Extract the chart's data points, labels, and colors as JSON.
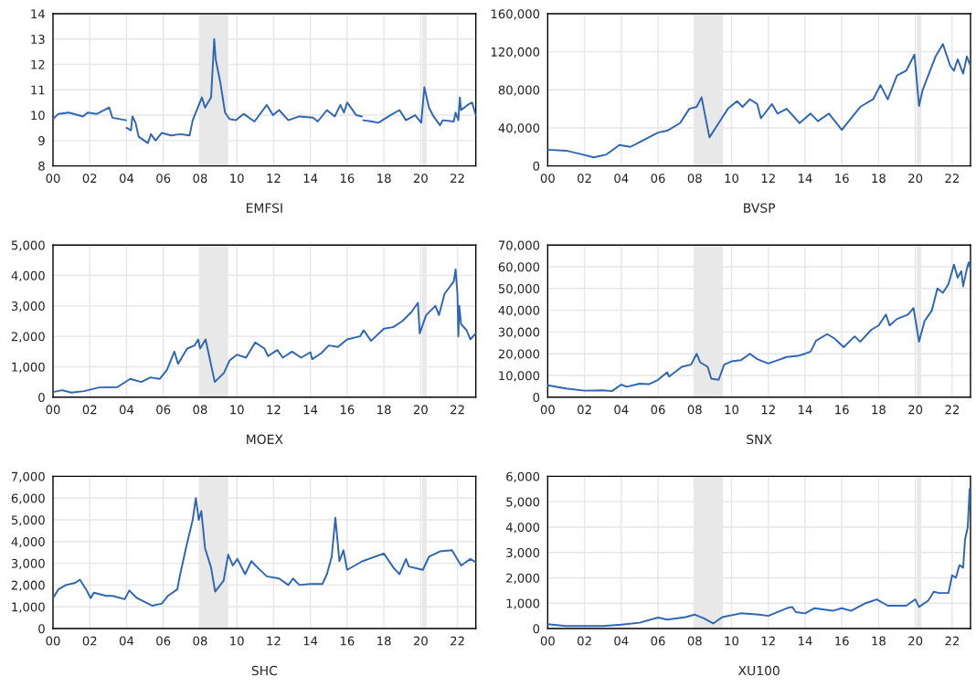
{
  "chart_data": [
    {
      "type": "line",
      "xlabel": "EMFSI",
      "xlim": [
        2000,
        2023
      ],
      "ylim": [
        8,
        14
      ],
      "yticks": [
        8,
        9,
        10,
        11,
        12,
        13,
        14
      ],
      "grid": true,
      "xticks": [
        {
          "value": 2000,
          "label": "00"
        },
        {
          "value": 2002,
          "label": "02"
        },
        {
          "value": 2004,
          "label": "04"
        },
        {
          "value": 2006,
          "label": "06"
        },
        {
          "value": 2008,
          "label": "08"
        },
        {
          "value": 2010,
          "label": "10"
        },
        {
          "value": 2012,
          "label": "12"
        },
        {
          "value": 2014,
          "label": "14"
        },
        {
          "value": 2016,
          "label": "16"
        },
        {
          "value": 2018,
          "label": "18"
        },
        {
          "value": 2020,
          "label": "20"
        },
        {
          "value": 2022,
          "label": "22"
        }
      ],
      "bands": [
        {
          "axis": "x",
          "from": 2007.93,
          "to": 2009.53,
          "color": "#e8e8e8"
        },
        {
          "axis": "x",
          "from": 2020.08,
          "to": 2020.32,
          "color": "#e8e8e8"
        }
      ],
      "x": [
        2000,
        2000.29,
        2000.87,
        2001.63,
        2001.88,
        2002.39,
        2003.06,
        2003.23,
        2003.98,
        2003.99,
        2004.0,
        2004.24,
        2004.32,
        2004.49,
        2004.66,
        2005.16,
        2005.33,
        2005.58,
        2005.92,
        2006.42,
        2006.92,
        2007.43,
        2007.6,
        2008.1,
        2008.27,
        2008.6,
        2008.77,
        2008.85,
        2009.1,
        2009.36,
        2009.6,
        2009.95,
        2010.37,
        2010.96,
        2011.63,
        2011.97,
        2012.3,
        2012.8,
        2013.4,
        2014.15,
        2014.4,
        2014.9,
        2015.33,
        2015.63,
        2015.83,
        2016.0,
        2016.5,
        2016.8,
        2016.84,
        2016.88,
        2017.35,
        2017.7,
        2018.35,
        2018.85,
        2019.2,
        2019.7,
        2020.03,
        2020.2,
        2020.45,
        2020.7,
        2021.05,
        2021.2,
        2021.8,
        2021.9,
        2022.05,
        2022.13,
        2022.2,
        2022.55,
        2022.8,
        2023.0
      ],
      "series": [
        {
          "color": "#2e66b4",
          "values": [
            9.85,
            10.05,
            10.1,
            9.95,
            10.1,
            10.05,
            10.3,
            9.9,
            9.8,
            null,
            9.5,
            9.4,
            9.95,
            9.7,
            9.15,
            8.9,
            9.25,
            9.0,
            9.3,
            9.2,
            9.25,
            9.2,
            9.8,
            10.7,
            10.3,
            10.7,
            13.0,
            12.2,
            11.3,
            10.1,
            9.85,
            9.8,
            10.05,
            9.75,
            10.4,
            10.0,
            10.2,
            9.8,
            9.95,
            9.9,
            9.75,
            10.2,
            9.95,
            10.4,
            10.1,
            10.5,
            10.0,
            9.95,
            null,
            9.8,
            9.75,
            9.7,
            10.0,
            10.2,
            9.8,
            10.0,
            9.7,
            11.1,
            10.3,
            9.95,
            9.6,
            9.8,
            9.75,
            10.1,
            9.8,
            10.7,
            10.2,
            10.4,
            10.5,
            10.0
          ]
        }
      ]
    },
    {
      "type": "line",
      "xlabel": "BVSP",
      "xlim": [
        2000,
        2023
      ],
      "ylim": [
        0,
        160000
      ],
      "yticks": [
        {
          "value": 0,
          "label": "0"
        },
        {
          "value": 40000,
          "label": "40,000"
        },
        {
          "value": 80000,
          "label": "80,000"
        },
        {
          "value": 120000,
          "label": "120,000"
        },
        {
          "value": 160000,
          "label": "160,000"
        }
      ],
      "grid": true,
      "xticks": [
        {
          "value": 2000,
          "label": "00"
        },
        {
          "value": 2002,
          "label": "02"
        },
        {
          "value": 2004,
          "label": "04"
        },
        {
          "value": 2006,
          "label": "06"
        },
        {
          "value": 2008,
          "label": "08"
        },
        {
          "value": 2010,
          "label": "10"
        },
        {
          "value": 2012,
          "label": "12"
        },
        {
          "value": 2014,
          "label": "14"
        },
        {
          "value": 2016,
          "label": "16"
        },
        {
          "value": 2018,
          "label": "18"
        },
        {
          "value": 2020,
          "label": "20"
        },
        {
          "value": 2022,
          "label": "22"
        }
      ],
      "bands": [
        {
          "axis": "x",
          "from": 2007.93,
          "to": 2009.53,
          "color": "#e8e8e8"
        },
        {
          "axis": "x",
          "from": 2020.08,
          "to": 2020.32,
          "color": "#e8e8e8"
        }
      ],
      "x": [
        2000,
        2001,
        2001.9,
        2002.5,
        2003.2,
        2003.9,
        2004.5,
        2005,
        2006,
        2006.5,
        2007.2,
        2007.7,
        2008.1,
        2008.37,
        2008.8,
        2009.3,
        2009.8,
        2010.3,
        2010.6,
        2011,
        2011.4,
        2011.6,
        2012.2,
        2012.5,
        2013,
        2013.7,
        2014.3,
        2014.7,
        2015.3,
        2016.0,
        2016.5,
        2017,
        2017.7,
        2018.1,
        2018.5,
        2019,
        2019.5,
        2019.95,
        2020.2,
        2020.4,
        2020.8,
        2021.1,
        2021.5,
        2021.9,
        2022.1,
        2022.3,
        2022.6,
        2022.8,
        2023.0
      ],
      "series": [
        {
          "color": "#2e66b4",
          "values": [
            17000,
            16000,
            12000,
            9000,
            12000,
            22000,
            20000,
            25000,
            35000,
            37000,
            45000,
            60000,
            62000,
            72000,
            30000,
            45000,
            60000,
            68000,
            62000,
            70000,
            65000,
            50000,
            65000,
            55000,
            60000,
            45000,
            55000,
            47000,
            55000,
            38000,
            50000,
            62000,
            70000,
            85000,
            70000,
            95000,
            100000,
            117000,
            63000,
            80000,
            100000,
            115000,
            128000,
            105000,
            100000,
            112000,
            97000,
            115000,
            105000
          ]
        }
      ]
    },
    {
      "type": "line",
      "xlabel": "MOEX",
      "xlim": [
        2000,
        2023
      ],
      "ylim": [
        0,
        5000
      ],
      "yticks": [
        {
          "value": 0,
          "label": "0"
        },
        {
          "value": 1000,
          "label": "1,000"
        },
        {
          "value": 2000,
          "label": "2,000"
        },
        {
          "value": 3000,
          "label": "3,000"
        },
        {
          "value": 4000,
          "label": "4,000"
        },
        {
          "value": 5000,
          "label": "5,000"
        }
      ],
      "grid": true,
      "xticks": [
        {
          "value": 2000,
          "label": "00"
        },
        {
          "value": 2002,
          "label": "02"
        },
        {
          "value": 2004,
          "label": "04"
        },
        {
          "value": 2006,
          "label": "06"
        },
        {
          "value": 2008,
          "label": "08"
        },
        {
          "value": 2010,
          "label": "10"
        },
        {
          "value": 2012,
          "label": "12"
        },
        {
          "value": 2014,
          "label": "14"
        },
        {
          "value": 2016,
          "label": "16"
        },
        {
          "value": 2018,
          "label": "18"
        },
        {
          "value": 2020,
          "label": "20"
        },
        {
          "value": 2022,
          "label": "22"
        }
      ],
      "bands": [
        {
          "axis": "x",
          "from": 2007.93,
          "to": 2009.53,
          "color": "#e8e8e8"
        },
        {
          "axis": "x",
          "from": 2020.08,
          "to": 2020.32,
          "color": "#e8e8e8"
        }
      ],
      "x": [
        2000,
        2000.5,
        2001,
        2001.7,
        2002.5,
        2003.5,
        2004.2,
        2004.8,
        2005.3,
        2005.8,
        2006.2,
        2006.6,
        2006.8,
        2007.3,
        2007.7,
        2007.9,
        2008.0,
        2008.3,
        2008.8,
        2009.3,
        2009.6,
        2010.0,
        2010.5,
        2011.0,
        2011.5,
        2011.7,
        2012.2,
        2012.5,
        2013,
        2013.5,
        2014,
        2014.1,
        2014.6,
        2015,
        2015.5,
        2016,
        2016.7,
        2016.9,
        2017.3,
        2018,
        2018.5,
        2019,
        2019.5,
        2019.85,
        2019.95,
        2020.3,
        2020.8,
        2021.0,
        2021.3,
        2021.8,
        2021.9,
        2022.0,
        2022.05,
        2022.1,
        2022.2,
        2022.5,
        2022.7,
        2023.0
      ],
      "series": [
        {
          "color": "#2e66b4",
          "values": [
            170,
            230,
            150,
            200,
            320,
            330,
            600,
            500,
            650,
            600,
            900,
            1500,
            1100,
            1600,
            1700,
            1900,
            1600,
            1900,
            500,
            800,
            1200,
            1400,
            1300,
            1800,
            1600,
            1350,
            1550,
            1300,
            1500,
            1300,
            1480,
            1250,
            1450,
            1700,
            1650,
            1900,
            2000,
            2200,
            1850,
            2250,
            2300,
            2500,
            2800,
            3100,
            2100,
            2700,
            3000,
            2700,
            3400,
            3800,
            4200,
            3400,
            2000,
            3000,
            2400,
            2200,
            1900,
            2100
          ]
        }
      ]
    },
    {
      "type": "line",
      "xlabel": "SNX",
      "xlim": [
        2000,
        2023
      ],
      "ylim": [
        0,
        70000
      ],
      "yticks": [
        {
          "value": 0,
          "label": "0"
        },
        {
          "value": 10000,
          "label": "10,000"
        },
        {
          "value": 20000,
          "label": "20,000"
        },
        {
          "value": 30000,
          "label": "30,000"
        },
        {
          "value": 40000,
          "label": "40,000"
        },
        {
          "value": 50000,
          "label": "50,000"
        },
        {
          "value": 60000,
          "label": "60,000"
        },
        {
          "value": 70000,
          "label": "70,000"
        }
      ],
      "grid": true,
      "xticks": [
        {
          "value": 2000,
          "label": "00"
        },
        {
          "value": 2002,
          "label": "02"
        },
        {
          "value": 2004,
          "label": "04"
        },
        {
          "value": 2006,
          "label": "06"
        },
        {
          "value": 2008,
          "label": "08"
        },
        {
          "value": 2010,
          "label": "10"
        },
        {
          "value": 2012,
          "label": "12"
        },
        {
          "value": 2014,
          "label": "14"
        },
        {
          "value": 2016,
          "label": "16"
        },
        {
          "value": 2018,
          "label": "18"
        },
        {
          "value": 2020,
          "label": "20"
        },
        {
          "value": 2022,
          "label": "22"
        }
      ],
      "bands": [
        {
          "axis": "x",
          "from": 2007.93,
          "to": 2009.53,
          "color": "#e8e8e8"
        },
        {
          "axis": "x",
          "from": 2020.08,
          "to": 2020.32,
          "color": "#e8e8e8"
        }
      ],
      "x": [
        2000,
        2001,
        2002,
        2003,
        2003.5,
        2004,
        2004.3,
        2005,
        2005.5,
        2006,
        2006.5,
        2006.6,
        2007.3,
        2007.8,
        2008.1,
        2008.3,
        2008.7,
        2008.9,
        2009.3,
        2009.6,
        2010.0,
        2010.5,
        2011.0,
        2011.4,
        2012.0,
        2012.5,
        2013,
        2013.6,
        2014,
        2014.3,
        2014.6,
        2015.2,
        2015.6,
        2016.1,
        2016.7,
        2017.0,
        2017.6,
        2018,
        2018.4,
        2018.6,
        2019,
        2019.6,
        2019.9,
        2020.2,
        2020.5,
        2020.9,
        2021.2,
        2021.5,
        2021.8,
        2022.1,
        2022.3,
        2022.5,
        2022.6,
        2022.8,
        2022.9,
        2023.0
      ],
      "series": [
        {
          "color": "#2e66b4",
          "values": [
            5500,
            4000,
            3000,
            3200,
            2800,
            5800,
            4800,
            6200,
            6000,
            8000,
            11500,
            9500,
            14000,
            15000,
            20000,
            16000,
            14000,
            8500,
            8000,
            15000,
            16500,
            17000,
            20000,
            17500,
            15500,
            17000,
            18500,
            19000,
            20000,
            21000,
            26000,
            29000,
            27000,
            23000,
            28000,
            25500,
            31000,
            33000,
            38000,
            33000,
            36000,
            38000,
            41000,
            25500,
            35000,
            40000,
            50000,
            48000,
            52000,
            61000,
            55000,
            58000,
            51000,
            59000,
            62000,
            59000
          ]
        }
      ]
    },
    {
      "type": "line",
      "xlabel": "SHC",
      "xlim": [
        2000,
        2023
      ],
      "ylim": [
        0,
        7000
      ],
      "yticks": [
        {
          "value": 0,
          "label": "0"
        },
        {
          "value": 1000,
          "label": "1,000"
        },
        {
          "value": 2000,
          "label": "2,000"
        },
        {
          "value": 3000,
          "label": "3,000"
        },
        {
          "value": 4000,
          "label": "4,000"
        },
        {
          "value": 5000,
          "label": "5,000"
        },
        {
          "value": 6000,
          "label": "6,000"
        },
        {
          "value": 7000,
          "label": "7,000"
        }
      ],
      "grid": true,
      "xticks": [
        {
          "value": 2000,
          "label": "00"
        },
        {
          "value": 2002,
          "label": "02"
        },
        {
          "value": 2004,
          "label": "04"
        },
        {
          "value": 2006,
          "label": "06"
        },
        {
          "value": 2008,
          "label": "08"
        },
        {
          "value": 2010,
          "label": "10"
        },
        {
          "value": 2012,
          "label": "12"
        },
        {
          "value": 2014,
          "label": "14"
        },
        {
          "value": 2016,
          "label": "16"
        },
        {
          "value": 2018,
          "label": "18"
        },
        {
          "value": 2020,
          "label": "20"
        },
        {
          "value": 2022,
          "label": "22"
        }
      ],
      "bands": [
        {
          "axis": "x",
          "from": 2007.93,
          "to": 2009.53,
          "color": "#e8e8e8"
        },
        {
          "axis": "x",
          "from": 2020.08,
          "to": 2020.32,
          "color": "#e8e8e8"
        }
      ],
      "x": [
        2000,
        2000.29,
        2000.7,
        2001.21,
        2001.46,
        2001.8,
        2002.05,
        2002.22,
        2002.89,
        2003.23,
        2003.9,
        2004.15,
        2004.57,
        2005.41,
        2005.92,
        2006.25,
        2006.76,
        2006.92,
        2007.26,
        2007.6,
        2007.77,
        2007.93,
        2008.07,
        2008.27,
        2008.6,
        2008.82,
        2009.28,
        2009.53,
        2009.78,
        2010.03,
        2010.45,
        2010.79,
        2011.13,
        2011.63,
        2012.3,
        2012.8,
        2013.06,
        2013.4,
        2013.98,
        2014.66,
        2014.9,
        2015.16,
        2015.36,
        2015.58,
        2015.8,
        2016.0,
        2016.84,
        2018.0,
        2018.52,
        2018.85,
        2019.2,
        2019.36,
        2020.12,
        2020.45,
        2021.05,
        2021.7,
        2022.2,
        2022.7,
        2023.0
      ],
      "series": [
        {
          "color": "#2e66b4",
          "values": [
            1400,
            1800,
            2000,
            2100,
            2250,
            1800,
            1400,
            1650,
            1500,
            1500,
            1350,
            1750,
            1400,
            1050,
            1150,
            1500,
            1800,
            2500,
            3800,
            5000,
            6000,
            5000,
            5400,
            3700,
            2800,
            1700,
            2200,
            3400,
            2900,
            3200,
            2500,
            3100,
            2800,
            2400,
            2300,
            2000,
            2300,
            2000,
            2050,
            2050,
            2500,
            3300,
            5100,
            3100,
            3600,
            2700,
            3100,
            3450,
            2800,
            2500,
            3200,
            2850,
            2700,
            3300,
            3550,
            3600,
            2900,
            3200,
            3050
          ]
        }
      ]
    },
    {
      "type": "line",
      "xlabel": "XU100",
      "xlim": [
        2000,
        2023
      ],
      "ylim": [
        0,
        6000
      ],
      "yticks": [
        {
          "value": 0,
          "label": "0"
        },
        {
          "value": 1000,
          "label": "1,000"
        },
        {
          "value": 2000,
          "label": "2,000"
        },
        {
          "value": 3000,
          "label": "3,000"
        },
        {
          "value": 4000,
          "label": "4,000"
        },
        {
          "value": 5000,
          "label": "5,000"
        },
        {
          "value": 6000,
          "label": "6,000"
        }
      ],
      "grid": true,
      "xticks": [
        {
          "value": 2000,
          "label": "00"
        },
        {
          "value": 2002,
          "label": "02"
        },
        {
          "value": 2004,
          "label": "04"
        },
        {
          "value": 2006,
          "label": "06"
        },
        {
          "value": 2008,
          "label": "08"
        },
        {
          "value": 2010,
          "label": "10"
        },
        {
          "value": 2012,
          "label": "12"
        },
        {
          "value": 2014,
          "label": "14"
        },
        {
          "value": 2016,
          "label": "16"
        },
        {
          "value": 2018,
          "label": "18"
        },
        {
          "value": 2020,
          "label": "20"
        },
        {
          "value": 2022,
          "label": "22"
        }
      ],
      "bands": [
        {
          "axis": "x",
          "from": 2007.93,
          "to": 2009.53,
          "color": "#e8e8e8"
        },
        {
          "axis": "x",
          "from": 2020.08,
          "to": 2020.32,
          "color": "#e8e8e8"
        }
      ],
      "x": [
        2000,
        2001,
        2002,
        2003,
        2004,
        2005,
        2006,
        2006.5,
        2007.5,
        2008.0,
        2008.5,
        2009.0,
        2009.5,
        2010.5,
        2011.5,
        2012.0,
        2013.0,
        2013.3,
        2013.5,
        2014.0,
        2014.5,
        2015.5,
        2016,
        2016.5,
        2017.3,
        2017.9,
        2018.5,
        2019.5,
        2020.0,
        2020.2,
        2020.7,
        2021.0,
        2021.3,
        2021.8,
        2022.0,
        2022.2,
        2022.4,
        2022.6,
        2022.7,
        2022.85,
        2022.95,
        2023.0
      ],
      "series": [
        {
          "color": "#2e66b4",
          "values": [
            170,
            100,
            100,
            100,
            150,
            230,
            430,
            350,
            450,
            550,
            400,
            200,
            450,
            600,
            550,
            500,
            800,
            850,
            650,
            600,
            800,
            700,
            800,
            700,
            1000,
            1150,
            900,
            900,
            1150,
            850,
            1100,
            1450,
            1400,
            1400,
            2100,
            2000,
            2500,
            2400,
            3500,
            4000,
            5500,
            4800
          ]
        }
      ]
    }
  ]
}
